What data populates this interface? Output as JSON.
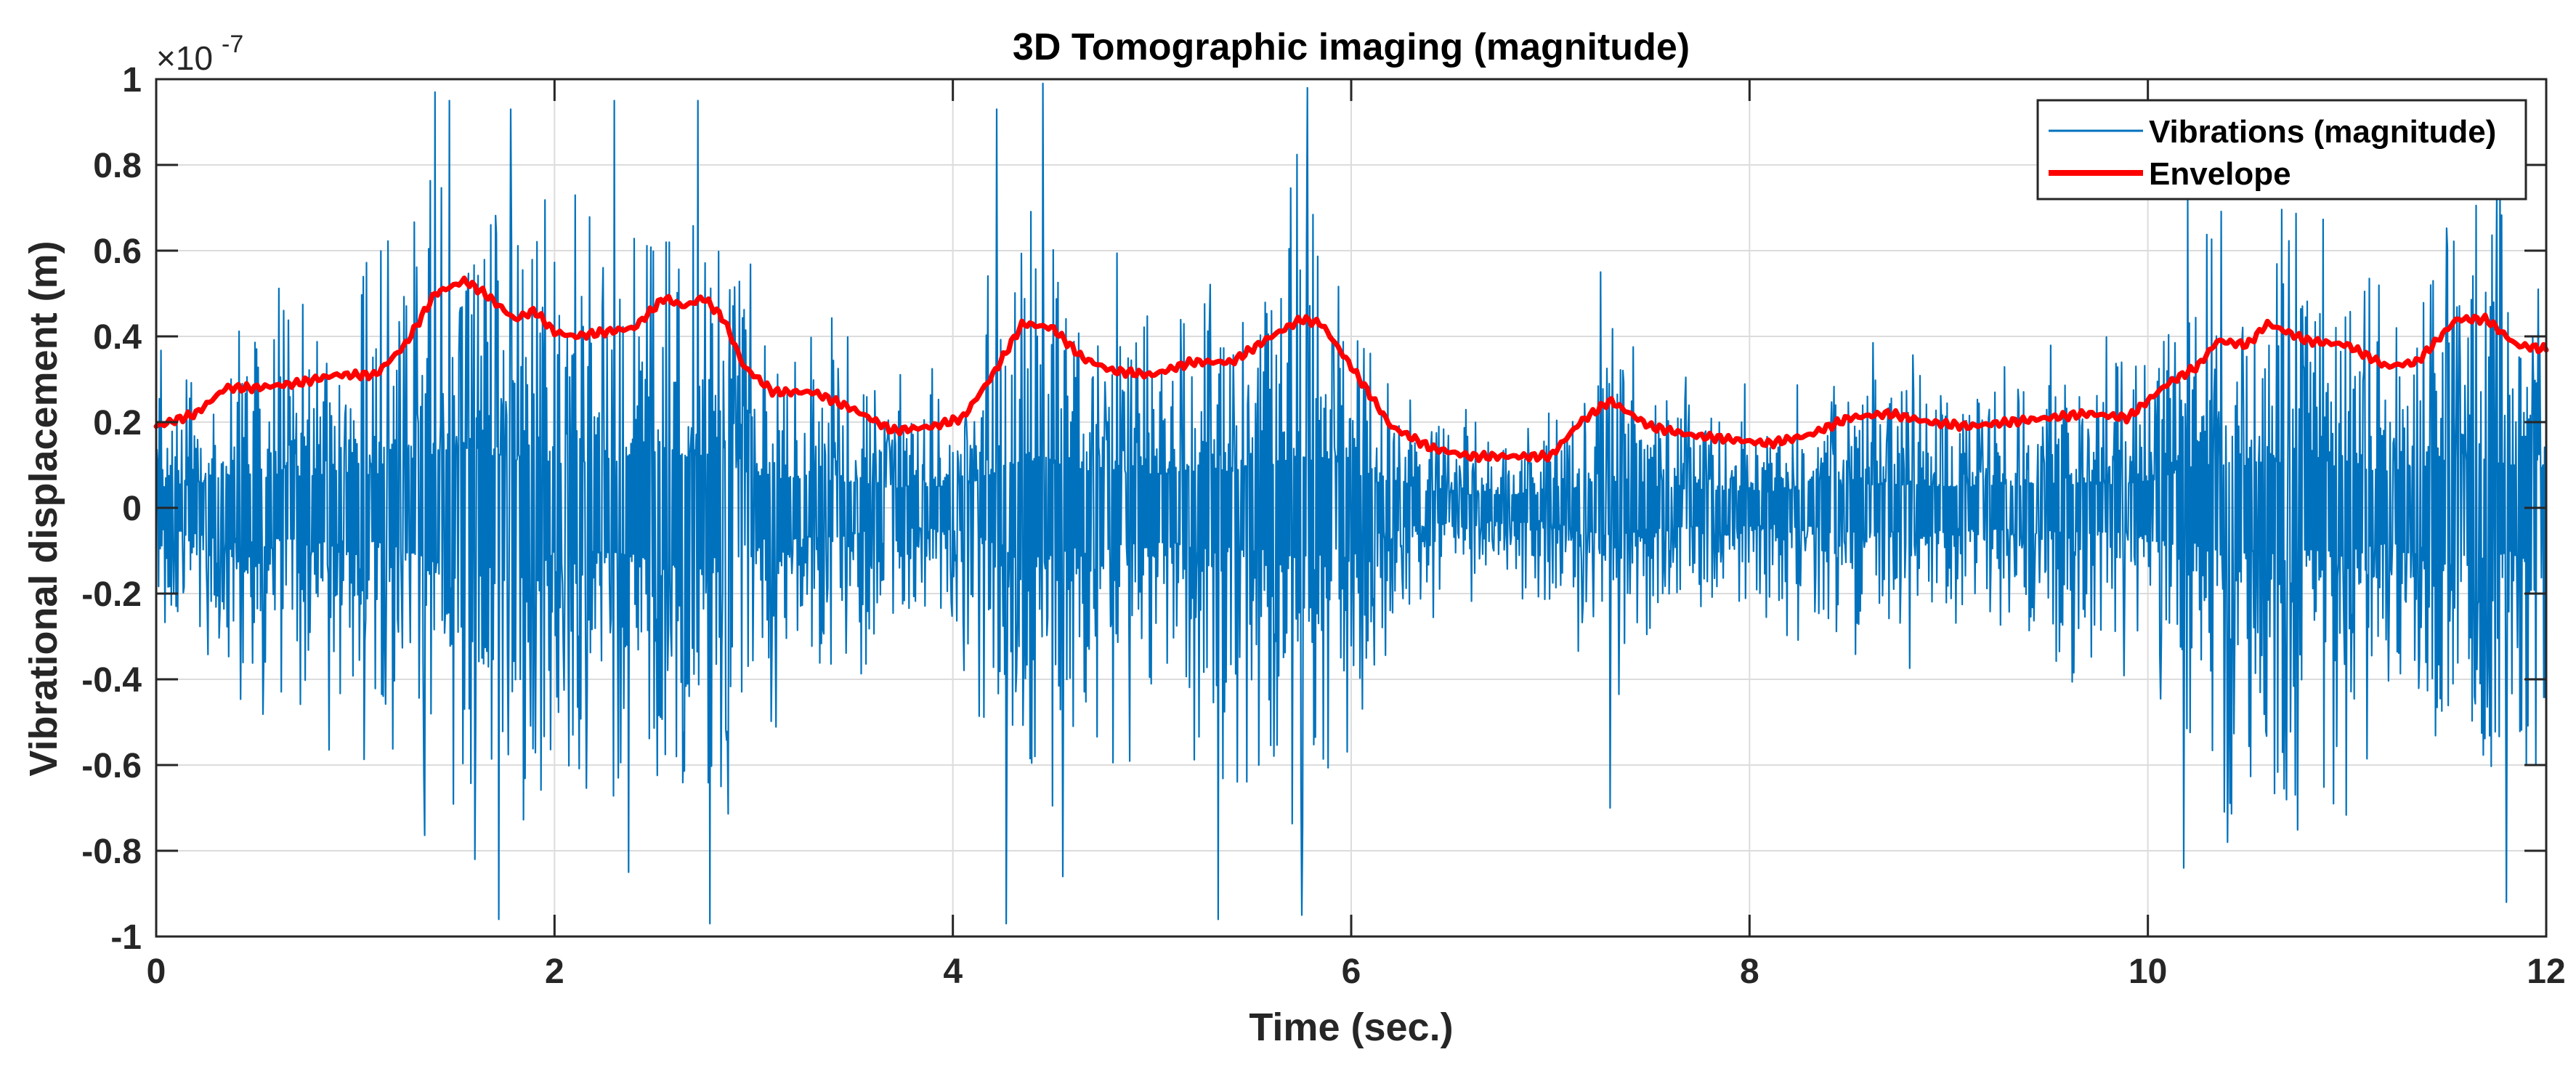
{
  "chart_data": {
    "type": "line",
    "title": "3D Tomographic imaging (magnitude)",
    "xlabel": "Time (sec.)",
    "ylabel": "Vibrational displacement (m)",
    "exponent_label": "×10",
    "exponent_power": "-7",
    "xlim": [
      0,
      12
    ],
    "ylim": [
      -1,
      1
    ],
    "x_ticks": [
      0,
      2,
      4,
      6,
      8,
      10,
      12
    ],
    "x_tick_labels": [
      "0",
      "2",
      "4",
      "6",
      "8",
      "10",
      "12"
    ],
    "y_ticks": [
      -1,
      -0.8,
      -0.6,
      -0.4,
      -0.2,
      0,
      0.2,
      0.4,
      0.6,
      0.8,
      1
    ],
    "y_tick_labels": [
      "-1",
      "-0.8",
      "-0.6",
      "-0.4",
      "-0.2",
      "0",
      "0.2",
      "0.4",
      "0.6",
      "0.8",
      "1"
    ],
    "y_units_scale": "1e-7",
    "grid": true,
    "legend_position": "top-right",
    "colors": {
      "vibrations": "#0072BD",
      "envelope": "#FF0000",
      "grid": "#dcdcdc",
      "axes": "#262626"
    },
    "series": [
      {
        "name": "Vibrations (magnitude)",
        "style": "thin-line",
        "note": "dense oscillating signal; amplitude follows the envelope values below",
        "samples_per_second": 250,
        "peak_events": [
          [
            1.4,
            0.97
          ],
          [
            1.47,
            0.95
          ],
          [
            1.6,
            -0.82
          ],
          [
            1.72,
            -0.96
          ],
          [
            1.78,
            0.93
          ],
          [
            2.3,
            0.95
          ],
          [
            2.37,
            -0.85
          ],
          [
            2.72,
            0.95
          ],
          [
            2.78,
            -0.97
          ],
          [
            4.22,
            0.93
          ],
          [
            4.27,
            -0.97
          ],
          [
            4.45,
            0.99
          ],
          [
            4.55,
            -0.86
          ],
          [
            5.33,
            -0.96
          ],
          [
            5.78,
            0.98
          ],
          [
            5.75,
            -0.95
          ],
          [
            7.25,
            0.55
          ],
          [
            7.3,
            -0.7
          ],
          [
            10.2,
            0.72
          ],
          [
            10.18,
            -0.84
          ],
          [
            10.4,
            -0.78
          ],
          [
            11.75,
            0.75
          ],
          [
            11.8,
            -0.92
          ],
          [
            11.95,
            -0.6
          ]
        ]
      },
      {
        "name": "Envelope",
        "style": "thick-line",
        "x": [
          0,
          0.2,
          0.35,
          0.5,
          0.7,
          0.9,
          1.1,
          1.25,
          1.4,
          1.55,
          1.65,
          1.8,
          1.9,
          2.0,
          2.1,
          2.25,
          2.4,
          2.55,
          2.65,
          2.75,
          2.85,
          2.95,
          3.1,
          3.3,
          3.5,
          3.7,
          3.9,
          4.05,
          4.2,
          4.35,
          4.5,
          4.65,
          4.8,
          5.0,
          5.2,
          5.4,
          5.6,
          5.75,
          5.85,
          6.0,
          6.2,
          6.4,
          6.6,
          6.8,
          7.0,
          7.15,
          7.3,
          7.5,
          7.7,
          7.9,
          8.1,
          8.3,
          8.5,
          8.7,
          8.9,
          9.1,
          9.3,
          9.5,
          9.7,
          9.9,
          10.1,
          10.25,
          10.35,
          10.5,
          10.6,
          10.8,
          11.0,
          11.2,
          11.35,
          11.55,
          11.7,
          11.85,
          12.0
        ],
        "values": [
          0.19,
          0.22,
          0.28,
          0.28,
          0.29,
          0.31,
          0.31,
          0.38,
          0.5,
          0.53,
          0.5,
          0.44,
          0.46,
          0.41,
          0.4,
          0.41,
          0.42,
          0.49,
          0.47,
          0.49,
          0.44,
          0.33,
          0.27,
          0.27,
          0.23,
          0.18,
          0.19,
          0.21,
          0.31,
          0.43,
          0.42,
          0.35,
          0.32,
          0.31,
          0.34,
          0.34,
          0.4,
          0.44,
          0.43,
          0.33,
          0.19,
          0.14,
          0.12,
          0.12,
          0.12,
          0.2,
          0.25,
          0.19,
          0.17,
          0.16,
          0.15,
          0.17,
          0.21,
          0.22,
          0.2,
          0.19,
          0.2,
          0.21,
          0.22,
          0.21,
          0.29,
          0.33,
          0.39,
          0.38,
          0.43,
          0.39,
          0.38,
          0.33,
          0.34,
          0.44,
          0.44,
          0.38,
          0.37
        ]
      }
    ]
  }
}
